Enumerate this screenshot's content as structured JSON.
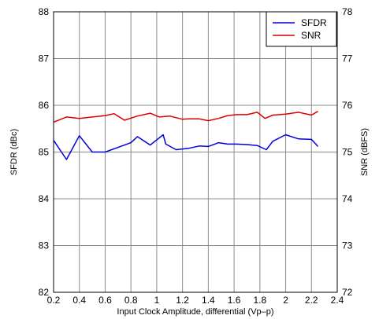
{
  "chart_data": {
    "type": "line",
    "xlabel": "Input Clock Amplitude, differential (Vp–p)",
    "ylabel_left": "SFDR (dBc)",
    "ylabel_right": "SNR (dBFS)",
    "xlim": [
      0.2,
      2.4
    ],
    "ylim_left": [
      82,
      88
    ],
    "ylim_right": [
      72,
      78
    ],
    "x_ticks": [
      "0.2",
      "0.4",
      "0.6",
      "0.8",
      "1",
      "1.2",
      "1.4",
      "1.6",
      "1.8",
      "2",
      "2.2",
      "2.4"
    ],
    "y_left_ticks": [
      "82",
      "83",
      "84",
      "85",
      "86",
      "87",
      "88"
    ],
    "y_right_ticks": [
      "72",
      "73",
      "74",
      "75",
      "76",
      "77",
      "78"
    ],
    "grid": true,
    "legend_position": "top-right",
    "series": [
      {
        "name": "SFDR",
        "axis": "left",
        "color": "#0000dd",
        "x": [
          0.2,
          0.3,
          0.4,
          0.5,
          0.6,
          0.7,
          0.8,
          0.85,
          0.95,
          1.05,
          1.07,
          1.15,
          1.25,
          1.33,
          1.4,
          1.48,
          1.55,
          1.62,
          1.7,
          1.78,
          1.85,
          1.9,
          2.0,
          2.1,
          2.2,
          2.25
        ],
        "values": [
          85.25,
          84.84,
          85.35,
          85.0,
          85.0,
          85.1,
          85.2,
          85.33,
          85.15,
          85.37,
          85.17,
          85.05,
          85.08,
          85.13,
          85.12,
          85.2,
          85.17,
          85.17,
          85.16,
          85.14,
          85.05,
          85.23,
          85.37,
          85.28,
          85.27,
          85.12
        ]
      },
      {
        "name": "SNR",
        "axis": "right",
        "color": "#dd0000",
        "x": [
          0.2,
          0.3,
          0.4,
          0.5,
          0.6,
          0.67,
          0.75,
          0.85,
          0.95,
          1.02,
          1.1,
          1.2,
          1.25,
          1.33,
          1.4,
          1.48,
          1.55,
          1.62,
          1.7,
          1.78,
          1.84,
          1.9,
          2.0,
          2.1,
          2.2,
          2.25
        ],
        "values": [
          75.64,
          75.75,
          75.72,
          75.75,
          75.78,
          75.82,
          75.68,
          75.77,
          75.83,
          75.75,
          75.77,
          75.7,
          75.71,
          75.71,
          75.67,
          75.72,
          75.78,
          75.8,
          75.8,
          75.85,
          75.72,
          75.79,
          75.81,
          75.85,
          75.79,
          75.87
        ]
      }
    ]
  }
}
